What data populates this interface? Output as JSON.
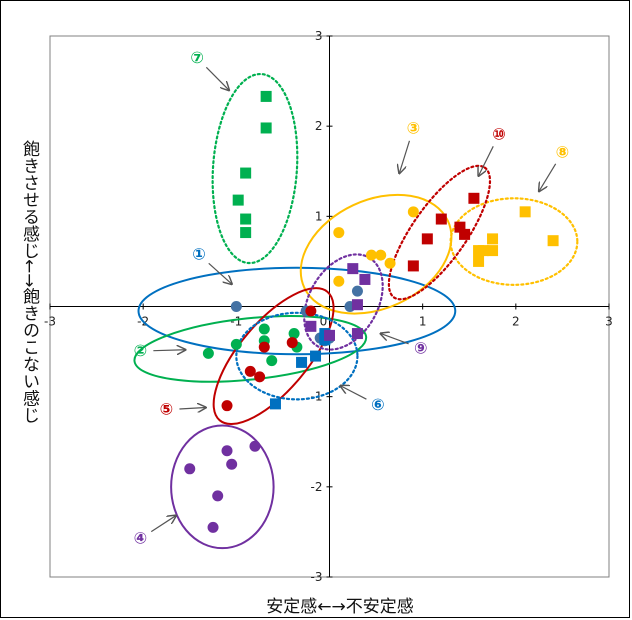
{
  "chart_data": {
    "type": "scatter",
    "xlabel": "安定感←→不安定感",
    "ylabel": "飽きさせる感じ←→飽きのこない感じ",
    "xlim": [
      -3,
      3
    ],
    "ylim": [
      -3,
      3
    ],
    "x_ticks": [
      "-3",
      "-2",
      "-1",
      "0",
      "1",
      "2",
      "3"
    ],
    "y_ticks": [
      "3",
      "2",
      "1",
      "0",
      "-1",
      "-2",
      "-3"
    ],
    "groups": [
      {
        "label": "①",
        "color": "#0070c0",
        "dotted": false,
        "marker": "circle",
        "marker_color": "#4472a4",
        "points": [
          [
            -1.0,
            0.0
          ],
          [
            -0.25,
            -0.05
          ],
          [
            0.3,
            0.17
          ],
          [
            0.22,
            0.0
          ],
          [
            -0.1,
            -0.35
          ],
          [
            0.0,
            -0.35
          ],
          [
            -0.05,
            -0.38
          ]
        ],
        "ellipse": {
          "cx": -0.35,
          "cy": -0.05,
          "rx": 1.7,
          "ry": 0.48,
          "rot": 0
        }
      },
      {
        "label": "②",
        "color": "#00b050",
        "dotted": false,
        "marker": "circle",
        "marker_color": "#00b050",
        "points": [
          [
            -1.3,
            -0.52
          ],
          [
            -1.0,
            -0.42
          ],
          [
            -0.7,
            -0.25
          ],
          [
            -0.62,
            -0.6
          ],
          [
            -0.38,
            -0.3
          ],
          [
            -0.35,
            -0.45
          ],
          [
            -0.7,
            -0.38
          ]
        ],
        "ellipse": {
          "cx": -0.85,
          "cy": -0.47,
          "rx": 1.25,
          "ry": 0.34,
          "rot": -6
        }
      },
      {
        "label": "③",
        "color": "#ffc000",
        "dotted": false,
        "marker": "circle",
        "marker_color": "#ffc000",
        "points": [
          [
            0.1,
            0.82
          ],
          [
            0.45,
            0.57
          ],
          [
            0.55,
            0.57
          ],
          [
            0.65,
            0.48
          ],
          [
            0.9,
            1.05
          ],
          [
            0.1,
            0.28
          ]
        ],
        "ellipse": {
          "cx": 0.5,
          "cy": 0.58,
          "rx": 0.85,
          "ry": 0.6,
          "rot": -25
        }
      },
      {
        "label": "④",
        "color": "#7030a0",
        "dotted": false,
        "marker": "circle",
        "marker_color": "#7030a0",
        "points": [
          [
            -1.5,
            -1.8
          ],
          [
            -1.1,
            -1.6
          ],
          [
            -0.8,
            -1.55
          ],
          [
            -1.05,
            -1.75
          ],
          [
            -1.2,
            -2.1
          ],
          [
            -1.25,
            -2.45
          ]
        ],
        "ellipse": {
          "cx": -1.15,
          "cy": -2.0,
          "rx": 0.55,
          "ry": 0.68,
          "rot": 0
        }
      },
      {
        "label": "⑤",
        "color": "#c00000",
        "dotted": false,
        "marker": "circle",
        "marker_color": "#c00000",
        "points": [
          [
            -1.1,
            -1.1
          ],
          [
            -0.85,
            -0.72
          ],
          [
            -0.75,
            -0.78
          ],
          [
            -0.7,
            -0.45
          ],
          [
            -0.4,
            -0.4
          ],
          [
            -0.2,
            -0.05
          ]
        ],
        "ellipse": {
          "cx": -0.6,
          "cy": -0.55,
          "rx": 0.9,
          "ry": 0.38,
          "rot": -50
        }
      },
      {
        "label": "⑥",
        "color": "#0070c0",
        "dotted": true,
        "marker": "square",
        "marker_color": "#0070c0",
        "points": [
          [
            -0.58,
            -1.08
          ],
          [
            -0.3,
            -0.62
          ],
          [
            -0.15,
            -0.55
          ],
          [
            -0.05,
            -0.37
          ],
          [
            -0.05,
            -0.3
          ]
        ],
        "ellipse": {
          "cx": -0.35,
          "cy": -0.55,
          "rx": 0.65,
          "ry": 0.48,
          "rot": 0
        }
      },
      {
        "label": "⑦",
        "color": "#00b050",
        "dotted": true,
        "marker": "square",
        "marker_color": "#00b050",
        "points": [
          [
            -0.68,
            2.33
          ],
          [
            -0.68,
            1.98
          ],
          [
            -0.9,
            1.48
          ],
          [
            -0.98,
            1.18
          ],
          [
            -0.9,
            0.97
          ],
          [
            -0.9,
            0.82
          ]
        ],
        "ellipse": {
          "cx": -0.8,
          "cy": 1.53,
          "rx": 0.45,
          "ry": 1.05,
          "rot": 4
        }
      },
      {
        "label": "⑧",
        "color": "#ffc000",
        "dotted": true,
        "marker": "square",
        "marker_color": "#ffc000",
        "points": [
          [
            2.1,
            1.05
          ],
          [
            2.4,
            0.73
          ],
          [
            1.75,
            0.75
          ],
          [
            1.75,
            0.62
          ],
          [
            1.65,
            0.62
          ],
          [
            1.6,
            0.5
          ],
          [
            1.6,
            0.62
          ]
        ],
        "ellipse": {
          "cx": 1.98,
          "cy": 0.72,
          "rx": 0.68,
          "ry": 0.48,
          "rot": 0
        }
      },
      {
        "label": "⑨",
        "color": "#7030a0",
        "dotted": true,
        "marker": "square",
        "marker_color": "#7030a0",
        "points": [
          [
            0.25,
            0.42
          ],
          [
            0.38,
            0.3
          ],
          [
            0.3,
            0.02
          ],
          [
            0.3,
            -0.3
          ],
          [
            -0.2,
            -0.22
          ],
          [
            0.0,
            -0.32
          ]
        ],
        "ellipse": {
          "cx": 0.15,
          "cy": 0.05,
          "rx": 0.55,
          "ry": 0.38,
          "rot": -60
        }
      },
      {
        "label": "⑩",
        "color": "#c00000",
        "dotted": true,
        "marker": "square",
        "marker_color": "#c00000",
        "points": [
          [
            1.55,
            1.2
          ],
          [
            1.2,
            0.97
          ],
          [
            1.05,
            0.75
          ],
          [
            1.4,
            0.88
          ],
          [
            1.45,
            0.8
          ],
          [
            0.9,
            0.45
          ]
        ],
        "ellipse": {
          "cx": 1.18,
          "cy": 0.82,
          "rx": 0.85,
          "ry": 0.3,
          "rot": -55
        }
      }
    ],
    "callouts": [
      {
        "label": "①",
        "text_x": -1.4,
        "text_y": 0.52,
        "arrow_to": [
          -1.05,
          0.25
        ]
      },
      {
        "label": "②",
        "text_x": -2.03,
        "text_y": -0.55,
        "arrow_to": [
          -1.55,
          -0.48
        ]
      },
      {
        "label": "③",
        "text_x": 0.9,
        "text_y": 1.92,
        "arrow_to": [
          0.75,
          1.48
        ]
      },
      {
        "label": "④",
        "text_x": -2.03,
        "text_y": -2.63,
        "arrow_to": [
          -1.65,
          -2.32
        ]
      },
      {
        "label": "⑤",
        "text_x": -1.75,
        "text_y": -1.2,
        "arrow_to": [
          -1.33,
          -1.12
        ]
      },
      {
        "label": "⑥",
        "text_x": 0.52,
        "text_y": -1.15,
        "arrow_to": [
          0.12,
          -0.88
        ]
      },
      {
        "label": "⑦",
        "text_x": -1.42,
        "text_y": 2.7,
        "arrow_to": [
          -1.08,
          2.4
        ]
      },
      {
        "label": "⑧",
        "text_x": 2.5,
        "text_y": 1.65,
        "arrow_to": [
          2.25,
          1.28
        ]
      },
      {
        "label": "⑨",
        "text_x": 0.98,
        "text_y": -0.52,
        "arrow_to": [
          0.55,
          -0.3
        ]
      },
      {
        "label": "⑩",
        "text_x": 1.82,
        "text_y": 1.85,
        "arrow_to": [
          1.6,
          1.45
        ]
      }
    ]
  }
}
